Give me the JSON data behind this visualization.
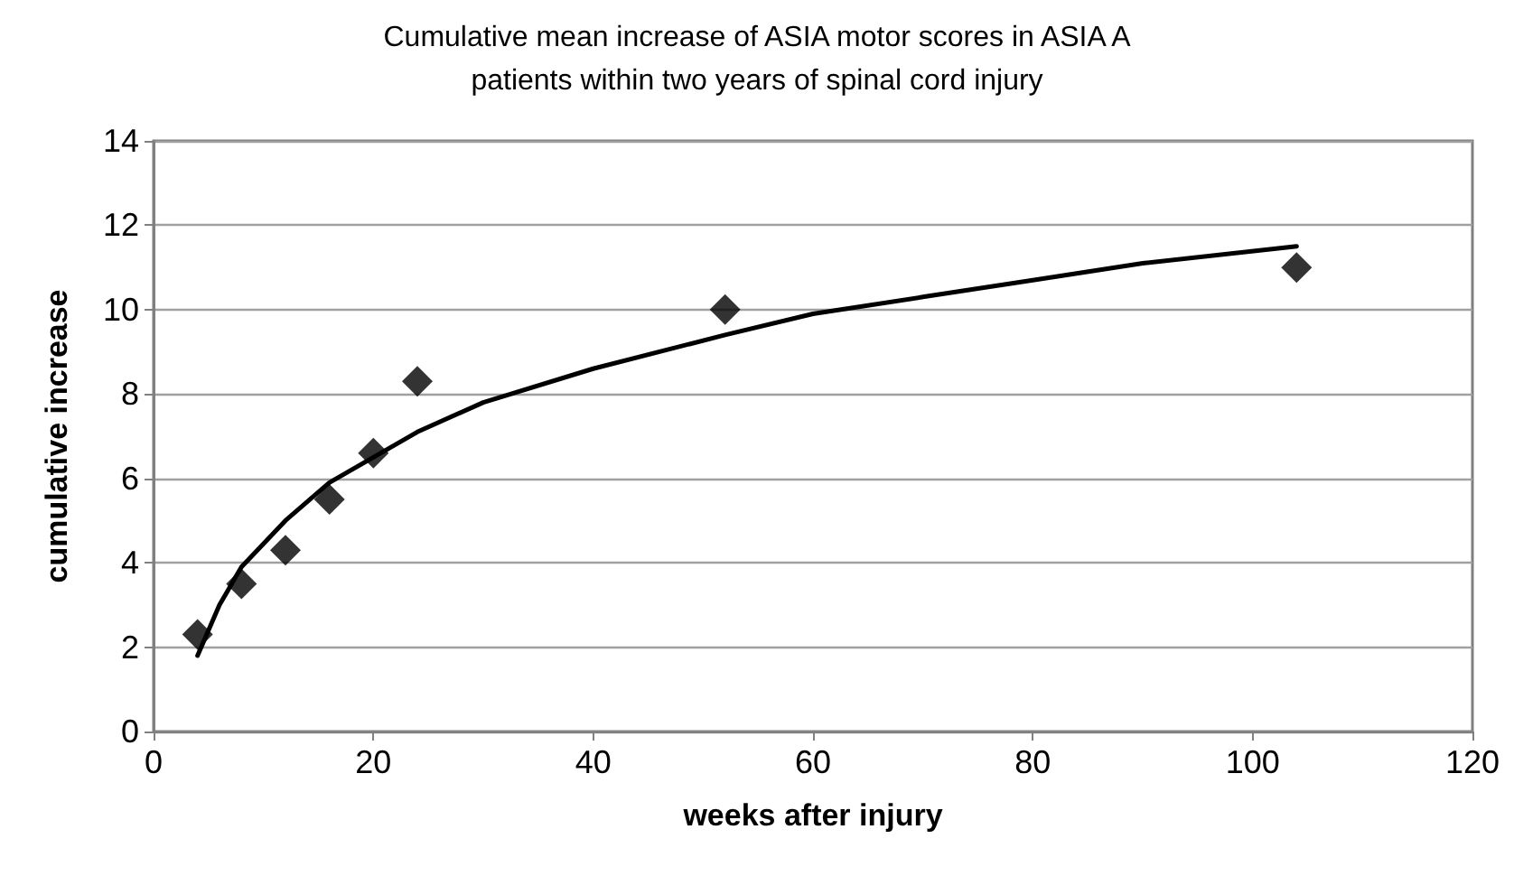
{
  "chart_data": {
    "type": "scatter",
    "title": "Cumulative mean increase of ASIA motor scores in ASIA A\npatients within two years of spinal cord injury",
    "xlabel": "weeks after injury",
    "ylabel": "cumulative increase",
    "xlim": [
      0,
      120
    ],
    "xticks": [
      0,
      20,
      40,
      60,
      80,
      100,
      120
    ],
    "ylim": [
      0,
      14
    ],
    "yticks": [
      0,
      2,
      4,
      6,
      8,
      10,
      12,
      14
    ],
    "grid": "y",
    "marker": "diamond",
    "series": [
      {
        "color": "#000000",
        "x": [
          4,
          8,
          12,
          16,
          20,
          24,
          52,
          104
        ],
        "values": [
          2.3,
          3.5,
          4.3,
          5.5,
          6.6,
          8.3,
          10.0,
          11.0
        ]
      },
      {
        "type": "line",
        "color": "#000000",
        "marker": "none",
        "line_style": "solid",
        "x": [
          4,
          6,
          8,
          12,
          16,
          20,
          24,
          30,
          40,
          52,
          60,
          70,
          80,
          90,
          104
        ],
        "values": [
          1.8,
          3.0,
          3.9,
          5.0,
          5.9,
          6.5,
          7.1,
          7.8,
          8.6,
          9.4,
          9.9,
          10.3,
          10.7,
          11.1,
          11.5
        ]
      }
    ]
  }
}
